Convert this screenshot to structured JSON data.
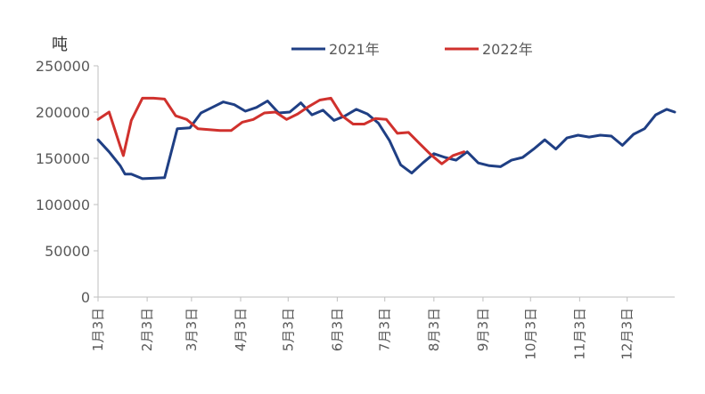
{
  "chart_data": {
    "type": "line",
    "unit_label": "吨",
    "x_tick_labels": [
      "1月3日",
      "2月3日",
      "3月3日",
      "4月3日",
      "5月3日",
      "6月3日",
      "7月3日",
      "8月3日",
      "9月3日",
      "10月3日",
      "11月3日",
      "12月3日"
    ],
    "y_tick_labels": [
      "0",
      "50000",
      "100000",
      "150000",
      "200000",
      "250000"
    ],
    "ylim": [
      0,
      250000
    ],
    "xlim": [
      0,
      364
    ],
    "grid": false,
    "legend_position": "top",
    "series": [
      {
        "name": "2021年",
        "color": "#1f3f84",
        "points": [
          [
            0,
            170000
          ],
          [
            7,
            157000
          ],
          [
            14,
            142000
          ],
          [
            17,
            133000
          ],
          [
            21,
            133000
          ],
          [
            28,
            128000
          ],
          [
            35,
            128500
          ],
          [
            42,
            129000
          ],
          [
            50,
            182000
          ],
          [
            58,
            183000
          ],
          [
            65,
            199000
          ],
          [
            72,
            205000
          ],
          [
            79,
            211000
          ],
          [
            86,
            208000
          ],
          [
            93,
            201000
          ],
          [
            100,
            205000
          ],
          [
            107,
            212000
          ],
          [
            114,
            199000
          ],
          [
            121,
            200000
          ],
          [
            128,
            210000
          ],
          [
            135,
            197000
          ],
          [
            142,
            202000
          ],
          [
            149,
            191000
          ],
          [
            156,
            196000
          ],
          [
            163,
            203000
          ],
          [
            170,
            198000
          ],
          [
            177,
            188000
          ],
          [
            184,
            169000
          ],
          [
            191,
            143000
          ],
          [
            198,
            134000
          ],
          [
            205,
            145000
          ],
          [
            212,
            155000
          ],
          [
            219,
            151000
          ],
          [
            226,
            148000
          ],
          [
            233,
            157000
          ],
          [
            240,
            145000
          ],
          [
            247,
            142000
          ],
          [
            254,
            141000
          ],
          [
            261,
            148000
          ],
          [
            268,
            151000
          ],
          [
            275,
            160000
          ],
          [
            282,
            170000
          ],
          [
            289,
            160000
          ],
          [
            296,
            172000
          ],
          [
            303,
            175000
          ],
          [
            310,
            173000
          ],
          [
            317,
            175000
          ],
          [
            324,
            174000
          ],
          [
            331,
            164000
          ],
          [
            338,
            176000
          ],
          [
            345,
            182000
          ],
          [
            352,
            197000
          ],
          [
            359,
            203000
          ],
          [
            364,
            200000
          ]
        ]
      },
      {
        "name": "2022年",
        "color": "#d0312d",
        "points": [
          [
            0,
            192000
          ],
          [
            7,
            200000
          ],
          [
            14,
            163000
          ],
          [
            16,
            153000
          ],
          [
            21,
            191000
          ],
          [
            28,
            215000
          ],
          [
            35,
            215000
          ],
          [
            42,
            214000
          ],
          [
            49,
            196000
          ],
          [
            56,
            192000
          ],
          [
            63,
            182000
          ],
          [
            70,
            181000
          ],
          [
            77,
            180000
          ],
          [
            84,
            180000
          ],
          [
            91,
            189000
          ],
          [
            98,
            192000
          ],
          [
            105,
            199000
          ],
          [
            112,
            200000
          ],
          [
            119,
            192000
          ],
          [
            126,
            198000
          ],
          [
            133,
            206000
          ],
          [
            140,
            213000
          ],
          [
            147,
            215000
          ],
          [
            154,
            196000
          ],
          [
            161,
            187000
          ],
          [
            168,
            187000
          ],
          [
            175,
            193000
          ],
          [
            182,
            192000
          ],
          [
            189,
            177000
          ],
          [
            196,
            178000
          ],
          [
            203,
            166000
          ],
          [
            210,
            154000
          ],
          [
            217,
            144000
          ],
          [
            224,
            153000
          ],
          [
            231,
            157000
          ]
        ]
      }
    ]
  }
}
